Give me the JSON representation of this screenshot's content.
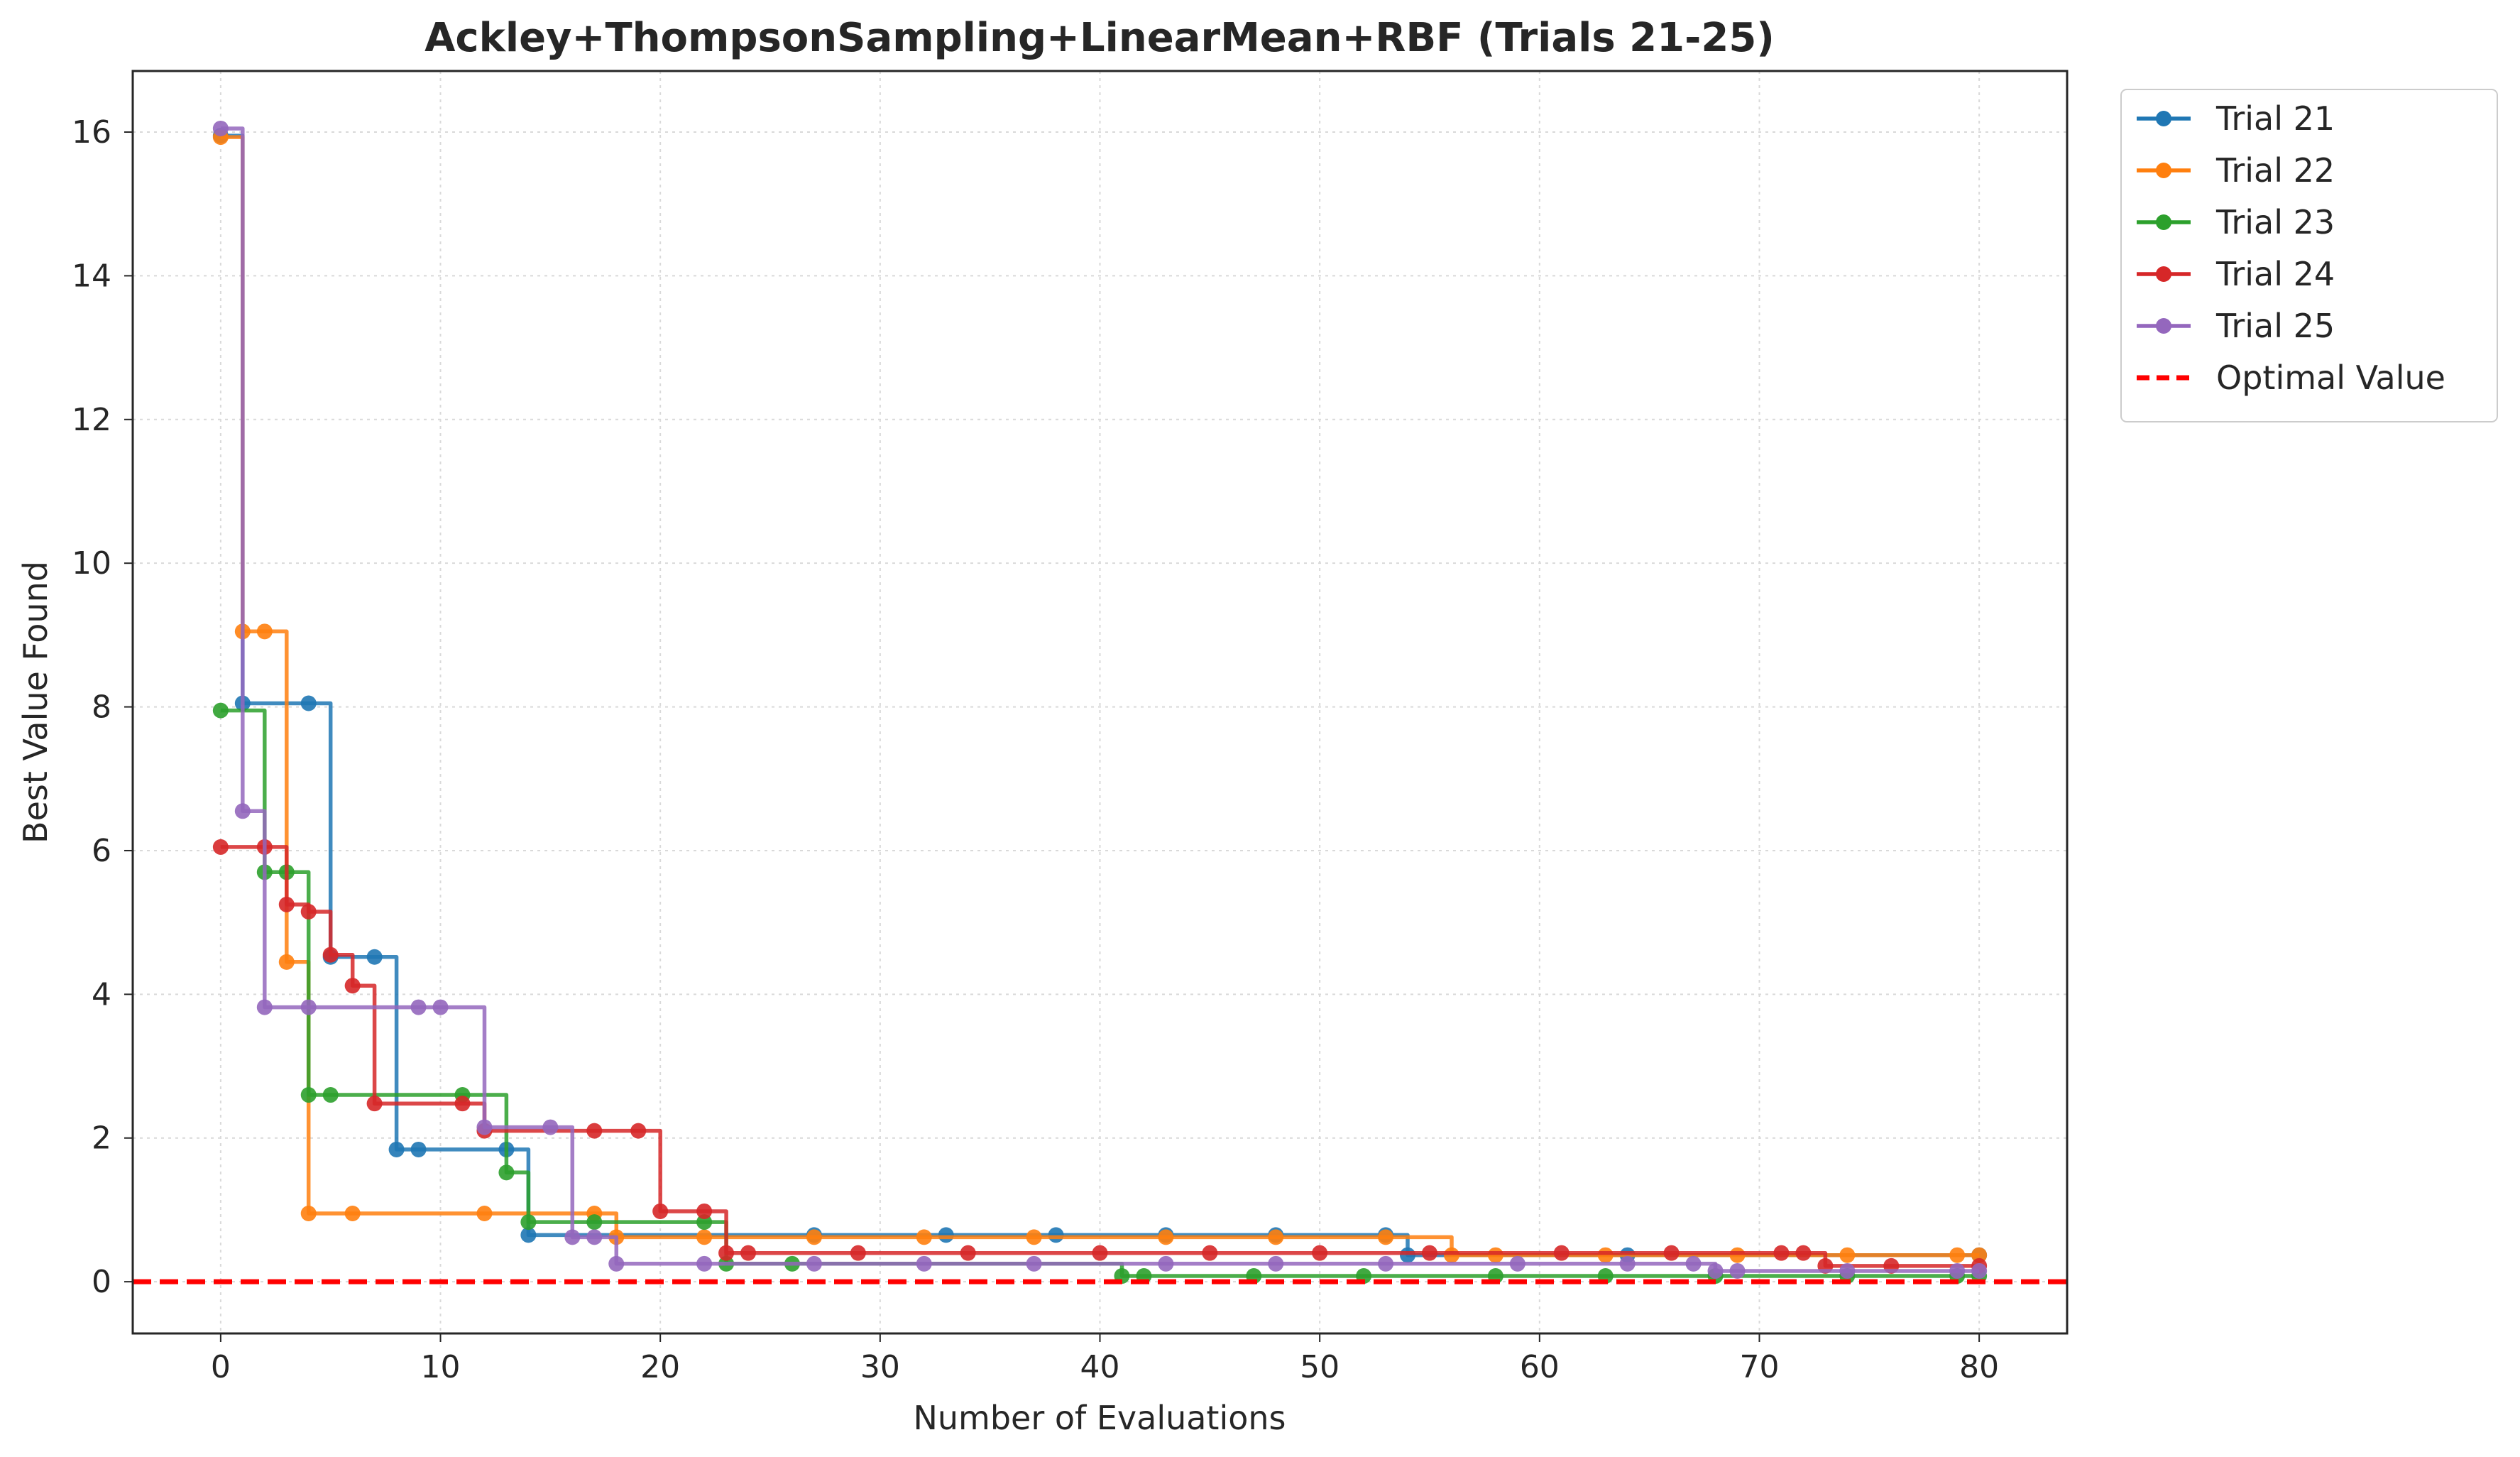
{
  "chart_data": {
    "type": "line",
    "title": "Ackley+ThompsonSampling+LinearMean+RBF (Trials 21-25)",
    "xlabel": "Number of Evaluations",
    "ylabel": "Best Value Found",
    "xlim": [
      -4,
      84
    ],
    "ylim": [
      -0.72,
      16.85
    ],
    "xticks": [
      0,
      10,
      20,
      30,
      40,
      50,
      60,
      70,
      80
    ],
    "yticks": [
      0,
      2,
      4,
      6,
      8,
      10,
      12,
      14,
      16
    ],
    "grid": true,
    "legend_position": "outside-top-right",
    "line_style": "step-post with markers",
    "series": [
      {
        "name": "Trial 21",
        "color": "#1f77b4",
        "points": [
          [
            0,
            15.95
          ],
          [
            1,
            8.05
          ],
          [
            4,
            8.05
          ],
          [
            5,
            4.52
          ],
          [
            7,
            4.52
          ],
          [
            8,
            1.84
          ],
          [
            9,
            1.84
          ],
          [
            13,
            1.84
          ],
          [
            14,
            0.65
          ],
          [
            27,
            0.65
          ],
          [
            33,
            0.65
          ],
          [
            38,
            0.65
          ],
          [
            43,
            0.65
          ],
          [
            48,
            0.65
          ],
          [
            53,
            0.65
          ],
          [
            54,
            0.37
          ],
          [
            64,
            0.37
          ],
          [
            80,
            0.37
          ]
        ]
      },
      {
        "name": "Trial 22",
        "color": "#ff7f0e",
        "points": [
          [
            0,
            15.93
          ],
          [
            1,
            9.05
          ],
          [
            2,
            9.05
          ],
          [
            3,
            4.45
          ],
          [
            4,
            0.95
          ],
          [
            6,
            0.95
          ],
          [
            12,
            0.95
          ],
          [
            17,
            0.95
          ],
          [
            18,
            0.62
          ],
          [
            22,
            0.62
          ],
          [
            27,
            0.62
          ],
          [
            32,
            0.62
          ],
          [
            37,
            0.62
          ],
          [
            43,
            0.62
          ],
          [
            48,
            0.62
          ],
          [
            53,
            0.62
          ],
          [
            56,
            0.37
          ],
          [
            58,
            0.37
          ],
          [
            63,
            0.37
          ],
          [
            69,
            0.37
          ],
          [
            74,
            0.37
          ],
          [
            79,
            0.37
          ],
          [
            80,
            0.37
          ]
        ]
      },
      {
        "name": "Trial 23",
        "color": "#2ca02c",
        "points": [
          [
            0,
            7.95
          ],
          [
            2,
            5.7
          ],
          [
            3,
            5.7
          ],
          [
            4,
            2.6
          ],
          [
            5,
            2.6
          ],
          [
            11,
            2.6
          ],
          [
            13,
            1.52
          ],
          [
            14,
            0.83
          ],
          [
            17,
            0.83
          ],
          [
            22,
            0.83
          ],
          [
            23,
            0.25
          ],
          [
            26,
            0.25
          ],
          [
            41,
            0.08
          ],
          [
            42,
            0.08
          ],
          [
            47,
            0.08
          ],
          [
            52,
            0.08
          ],
          [
            58,
            0.08
          ],
          [
            63,
            0.08
          ],
          [
            68,
            0.08
          ],
          [
            74,
            0.08
          ],
          [
            79,
            0.08
          ],
          [
            80,
            0.08
          ]
        ]
      },
      {
        "name": "Trial 24",
        "color": "#d62728",
        "points": [
          [
            0,
            6.05
          ],
          [
            2,
            6.05
          ],
          [
            3,
            5.25
          ],
          [
            4,
            5.15
          ],
          [
            5,
            4.55
          ],
          [
            6,
            4.12
          ],
          [
            7,
            2.48
          ],
          [
            11,
            2.48
          ],
          [
            12,
            2.1
          ],
          [
            17,
            2.1
          ],
          [
            19,
            2.1
          ],
          [
            20,
            0.98
          ],
          [
            22,
            0.98
          ],
          [
            23,
            0.4
          ],
          [
            24,
            0.4
          ],
          [
            29,
            0.4
          ],
          [
            34,
            0.4
          ],
          [
            40,
            0.4
          ],
          [
            45,
            0.4
          ],
          [
            50,
            0.4
          ],
          [
            55,
            0.4
          ],
          [
            61,
            0.4
          ],
          [
            66,
            0.4
          ],
          [
            71,
            0.4
          ],
          [
            72,
            0.4
          ],
          [
            73,
            0.22
          ],
          [
            76,
            0.22
          ],
          [
            80,
            0.22
          ]
        ]
      },
      {
        "name": "Trial 25",
        "color": "#9467bd",
        "points": [
          [
            0,
            16.05
          ],
          [
            1,
            6.55
          ],
          [
            2,
            3.82
          ],
          [
            4,
            3.82
          ],
          [
            9,
            3.82
          ],
          [
            10,
            3.82
          ],
          [
            12,
            2.15
          ],
          [
            15,
            2.15
          ],
          [
            16,
            0.62
          ],
          [
            17,
            0.62
          ],
          [
            18,
            0.25
          ],
          [
            22,
            0.25
          ],
          [
            27,
            0.25
          ],
          [
            32,
            0.25
          ],
          [
            37,
            0.25
          ],
          [
            43,
            0.25
          ],
          [
            48,
            0.25
          ],
          [
            53,
            0.25
          ],
          [
            59,
            0.25
          ],
          [
            64,
            0.25
          ],
          [
            67,
            0.25
          ],
          [
            68,
            0.15
          ],
          [
            69,
            0.15
          ],
          [
            74,
            0.15
          ],
          [
            79,
            0.15
          ],
          [
            80,
            0.15
          ]
        ]
      },
      {
        "name": "Optimal Value",
        "color": "#ff0000",
        "dashed": true,
        "horizontal_line_y": 0
      }
    ]
  }
}
